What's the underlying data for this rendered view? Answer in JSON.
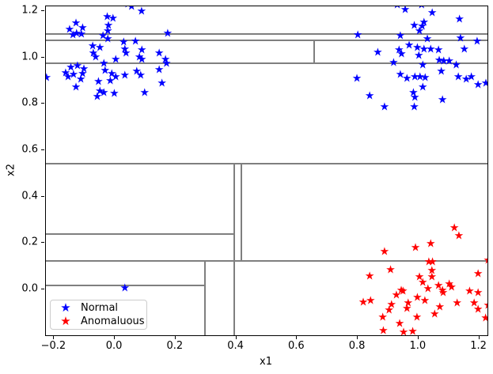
{
  "chart_data": {
    "type": "scatter",
    "title": "",
    "xlabel": "x1",
    "ylabel": "x2",
    "xlim": [
      -0.227,
      1.227
    ],
    "ylim": [
      -0.198,
      1.22
    ],
    "grid": false,
    "xtick_values": [
      -0.2,
      0.0,
      0.2,
      0.4,
      0.6,
      0.8,
      1.0,
      1.2
    ],
    "xtick_labels": [
      "−0.2",
      "0.0",
      "0.2",
      "0.4",
      "0.6",
      "0.8",
      "1.0",
      "1.2"
    ],
    "ytick_values": [
      0.0,
      0.2,
      0.4,
      0.6,
      0.8,
      1.0,
      1.2
    ],
    "ytick_labels": [
      "0.0",
      "0.2",
      "0.4",
      "0.6",
      "0.8",
      "1.0",
      "1.2"
    ],
    "marker": "star",
    "colors": {
      "normal": "#0000ff",
      "anomalous": "#ff0000",
      "partition": "#7f7f7f",
      "spine": "#000000"
    },
    "legend": {
      "position": "lower-left",
      "entries": [
        {
          "label": "Normal",
          "color": "#0000ff"
        },
        {
          "label": "Anomaluous",
          "color": "#ff0000"
        }
      ]
    },
    "series": [
      {
        "name": "Normal",
        "color": "#0000ff",
        "points": [
          [
            0.055,
            1.215
          ],
          [
            0.088,
            1.196
          ],
          [
            0.043,
            1.228
          ],
          [
            -0.025,
            1.173
          ],
          [
            -0.006,
            1.166
          ],
          [
            -0.021,
            1.136
          ],
          [
            -0.128,
            1.144
          ],
          [
            -0.149,
            1.119
          ],
          [
            -0.106,
            1.124
          ],
          [
            -0.126,
            1.102
          ],
          [
            -0.138,
            1.094
          ],
          [
            -0.11,
            1.096
          ],
          [
            -0.023,
            1.111
          ],
          [
            0.174,
            1.099
          ],
          [
            -0.039,
            1.09
          ],
          [
            -0.023,
            1.076
          ],
          [
            0.029,
            1.062
          ],
          [
            0.068,
            1.067
          ],
          [
            -0.073,
            1.045
          ],
          [
            -0.049,
            1.039
          ],
          [
            0.033,
            1.033
          ],
          [
            0.037,
            1.016
          ],
          [
            0.089,
            1.028
          ],
          [
            -0.071,
            1.016
          ],
          [
            -0.063,
            0.999
          ],
          [
            0.146,
            1.016
          ],
          [
            0.081,
            0.999
          ],
          [
            0.167,
            0.988
          ],
          [
            0.146,
            0.943
          ],
          [
            0.003,
            0.988
          ],
          [
            -0.036,
            0.971
          ],
          [
            -0.145,
            0.954
          ],
          [
            -0.123,
            0.962
          ],
          [
            -0.102,
            0.948
          ],
          [
            -0.162,
            0.931
          ],
          [
            -0.136,
            0.923
          ],
          [
            -0.106,
            0.926
          ],
          [
            -0.225,
            0.909
          ],
          [
            -0.154,
            0.912
          ],
          [
            -0.032,
            0.939
          ],
          [
            -0.01,
            0.928
          ],
          [
            0.003,
            0.914
          ],
          [
            0.033,
            0.92
          ],
          [
            0.072,
            0.937
          ],
          [
            0.085,
            0.92
          ],
          [
            -0.112,
            0.903
          ],
          [
            -0.054,
            0.892
          ],
          [
            -0.015,
            0.897
          ],
          [
            -0.128,
            0.869
          ],
          [
            -0.049,
            0.852
          ],
          [
            -0.036,
            0.844
          ],
          [
            -0.002,
            0.84
          ],
          [
            -0.058,
            0.828
          ],
          [
            0.098,
            0.844
          ],
          [
            0.17,
            0.971
          ],
          [
            0.089,
            0.988
          ],
          [
            0.155,
            0.885
          ],
          [
            0.956,
            1.204
          ],
          [
            1.045,
            1.189
          ],
          [
            1.135,
            1.162
          ],
          [
            0.986,
            1.136
          ],
          [
            1.012,
            1.132
          ],
          [
            1.003,
            1.11
          ],
          [
            1.018,
            1.15
          ],
          [
            0.8,
            1.095
          ],
          [
            0.94,
            1.091
          ],
          [
            1.029,
            1.076
          ],
          [
            1.138,
            1.079
          ],
          [
            1.193,
            1.067
          ],
          [
            0.969,
            1.048
          ],
          [
            0.996,
            1.039
          ],
          [
            0.936,
            1.03
          ],
          [
            0.866,
            1.019
          ],
          [
            1.018,
            1.033
          ],
          [
            1.04,
            1.033
          ],
          [
            1.066,
            1.03
          ],
          [
            1.151,
            1.033
          ],
          [
            1.001,
            1.005
          ],
          [
            0.944,
            1.011
          ],
          [
            0.918,
            0.973
          ],
          [
            1.068,
            0.984
          ],
          [
            1.083,
            0.98
          ],
          [
            1.101,
            0.982
          ],
          [
            1.124,
            0.965
          ],
          [
            1.014,
            0.965
          ],
          [
            0.94,
            0.923
          ],
          [
            0.962,
            0.905
          ],
          [
            0.988,
            0.914
          ],
          [
            1.005,
            0.914
          ],
          [
            1.022,
            0.909
          ],
          [
            1.075,
            0.937
          ],
          [
            1.131,
            0.914
          ],
          [
            1.157,
            0.903
          ],
          [
            1.196,
            0.878
          ],
          [
            0.797,
            0.905
          ],
          [
            0.839,
            0.832
          ],
          [
            0.888,
            0.783
          ],
          [
            0.983,
            0.846
          ],
          [
            0.988,
            0.826
          ],
          [
            1.014,
            0.869
          ],
          [
            1.079,
            0.814
          ],
          [
            0.986,
            0.784
          ],
          [
            1.174,
            0.914
          ],
          [
            1.222,
            0.886
          ],
          [
            0.93,
            1.225
          ],
          [
            1.01,
            1.222
          ],
          [
            0.033,
            0.004
          ]
        ]
      },
      {
        "name": "Anomaluous",
        "color": "#ff0000",
        "points": [
          [
            1.118,
            0.261
          ],
          [
            1.133,
            0.227
          ],
          [
            0.888,
            0.161
          ],
          [
            0.99,
            0.178
          ],
          [
            1.04,
            0.193
          ],
          [
            1.034,
            0.116
          ],
          [
            1.046,
            0.114
          ],
          [
            1.229,
            0.122
          ],
          [
            0.839,
            0.053
          ],
          [
            0.908,
            0.082
          ],
          [
            1.044,
            0.079
          ],
          [
            1.003,
            0.051
          ],
          [
            1.044,
            0.051
          ],
          [
            1.014,
            0.026
          ],
          [
            1.031,
            0.0
          ],
          [
            1.066,
            0.015
          ],
          [
            1.101,
            0.019
          ],
          [
            1.196,
            0.065
          ],
          [
            0.943,
            -0.006
          ],
          [
            1.079,
            -0.006
          ],
          [
            1.109,
            0.005
          ],
          [
            1.168,
            -0.011
          ],
          [
            1.196,
            -0.019
          ],
          [
            0.818,
            -0.057
          ],
          [
            0.842,
            -0.051
          ],
          [
            0.927,
            -0.026
          ],
          [
            0.949,
            -0.011
          ],
          [
            0.966,
            -0.06
          ],
          [
            0.962,
            -0.085
          ],
          [
            0.911,
            -0.068
          ],
          [
            0.903,
            -0.091
          ],
          [
            1.081,
            -0.019
          ],
          [
            1.127,
            -0.06
          ],
          [
            1.183,
            -0.062
          ],
          [
            1.196,
            -0.088
          ],
          [
            1.221,
            -0.128
          ],
          [
            1.229,
            -0.072
          ],
          [
            1.053,
            -0.108
          ],
          [
            1.07,
            -0.079
          ],
          [
            0.882,
            -0.122
          ],
          [
            0.938,
            -0.151
          ],
          [
            0.995,
            -0.122
          ],
          [
            0.884,
            -0.182
          ],
          [
            0.951,
            -0.187
          ],
          [
            0.981,
            -0.185
          ],
          [
            0.996,
            -0.037
          ],
          [
            1.021,
            -0.051
          ]
        ]
      }
    ],
    "partition_lines": {
      "color": "#7f7f7f",
      "horizontal": [
        {
          "y": 1.1,
          "x0": -0.227,
          "x1": 1.227
        },
        {
          "y": 1.073,
          "x0": -0.227,
          "x1": 1.227
        },
        {
          "y": 0.974,
          "x0": -0.227,
          "x1": 1.227
        },
        {
          "y": 0.54,
          "x0": -0.227,
          "x1": 1.227
        },
        {
          "y": 0.24,
          "x0": -0.227,
          "x1": 0.393
        },
        {
          "y": 0.123,
          "x0": -0.227,
          "x1": 1.227
        },
        {
          "y": 0.017,
          "x0": -0.227,
          "x1": 0.296
        }
      ],
      "vertical": [
        {
          "x": 0.296,
          "y0": -0.198,
          "y1": 0.123
        },
        {
          "x": 0.393,
          "y0": -0.198,
          "y1": 0.54
        },
        {
          "x": 0.416,
          "y0": 0.123,
          "y1": 0.54
        },
        {
          "x": 0.656,
          "y0": 0.974,
          "y1": 1.073
        }
      ]
    }
  }
}
